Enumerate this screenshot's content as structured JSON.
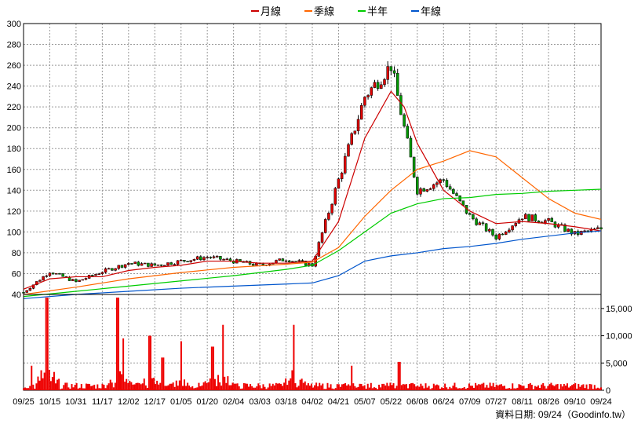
{
  "legend": [
    {
      "label": "月線",
      "color": "#cc0000"
    },
    {
      "label": "季線",
      "color": "#ff6600"
    },
    {
      "label": "半年",
      "color": "#00cc00"
    },
    {
      "label": "年線",
      "color": "#0055cc"
    }
  ],
  "footer": "資料日期: 09/24（Goodinfo.tw）",
  "chart_data": [
    {
      "type": "candlestick",
      "price_axis": {
        "min": 40,
        "max": 300,
        "ticks": [
          40,
          60,
          80,
          100,
          120,
          140,
          160,
          180,
          200,
          220,
          240,
          260,
          280,
          300
        ]
      },
      "dates": [
        "09/25",
        "10/15",
        "10/31",
        "11/17",
        "12/02",
        "12/17",
        "01/05",
        "01/20",
        "02/04",
        "03/03",
        "03/18",
        "04/02",
        "04/21",
        "05/07",
        "05/22",
        "06/08",
        "06/24",
        "07/09",
        "07/27",
        "08/11",
        "08/26",
        "09/10",
        "09/24"
      ],
      "close_approx": [
        42,
        62,
        52,
        62,
        70,
        68,
        72,
        76,
        72,
        68,
        74,
        68,
        150,
        230,
        260,
        140,
        150,
        115,
        95,
        115,
        110,
        98,
        103
      ],
      "moving_averages": [
        {
          "name": "月線",
          "color": "#cc0000",
          "x": [
            0,
            1,
            2,
            3,
            4,
            5,
            6,
            7,
            8,
            9,
            10,
            11,
            12,
            13,
            14,
            14.5,
            15,
            16,
            17,
            18,
            19,
            20,
            21,
            22
          ],
          "y": [
            45,
            55,
            57,
            57,
            63,
            66,
            68,
            72,
            72,
            70,
            70,
            72,
            110,
            190,
            235,
            220,
            185,
            140,
            120,
            108,
            110,
            108,
            105,
            101
          ]
        },
        {
          "name": "季線",
          "color": "#ff6600",
          "x": [
            0,
            2,
            4,
            6,
            8,
            10,
            11,
            12,
            13,
            14,
            15,
            16,
            17,
            18,
            19,
            20,
            21,
            22
          ],
          "y": [
            40,
            47,
            55,
            61,
            66,
            69,
            71,
            85,
            115,
            140,
            160,
            168,
            178,
            172,
            152,
            132,
            118,
            112
          ]
        },
        {
          "name": "半年",
          "color": "#00cc00",
          "x": [
            0,
            2,
            4,
            6,
            8,
            10,
            11,
            12,
            13,
            14,
            15,
            16,
            17,
            18,
            19,
            20,
            21,
            22
          ],
          "y": [
            38,
            43,
            48,
            53,
            58,
            64,
            68,
            82,
            100,
            118,
            127,
            132,
            133,
            136,
            137,
            139,
            140,
            141
          ]
        },
        {
          "name": "年線",
          "color": "#0055cc",
          "x": [
            0,
            2,
            4,
            6,
            8,
            10,
            11,
            12,
            13,
            14,
            15,
            16,
            17,
            18,
            19,
            20,
            21,
            22
          ],
          "y": [
            36,
            40,
            43,
            46,
            48,
            50,
            51,
            58,
            72,
            77,
            80,
            84,
            86,
            89,
            93,
            96,
            99,
            101
          ]
        }
      ]
    },
    {
      "type": "bar",
      "volume_axis": {
        "min": 0,
        "max": 17000,
        "ticks": [
          0,
          5000,
          10000,
          15000
        ],
        "tick_labels": [
          "0",
          "5,000",
          "10,000",
          "15,000"
        ]
      },
      "volume_peaks": [
        {
          "x": 0.3,
          "v": 4500
        },
        {
          "x": 0.9,
          "v": 17000
        },
        {
          "x": 3.6,
          "v": 17000
        },
        {
          "x": 3.8,
          "v": 9500
        },
        {
          "x": 4.8,
          "v": 10000
        },
        {
          "x": 5.3,
          "v": 6000
        },
        {
          "x": 6.0,
          "v": 9000
        },
        {
          "x": 7.2,
          "v": 8000
        },
        {
          "x": 7.6,
          "v": 12000
        },
        {
          "x": 10.3,
          "v": 12000
        },
        {
          "x": 12.5,
          "v": 4500
        },
        {
          "x": 14.3,
          "v": 5200
        }
      ]
    }
  ]
}
